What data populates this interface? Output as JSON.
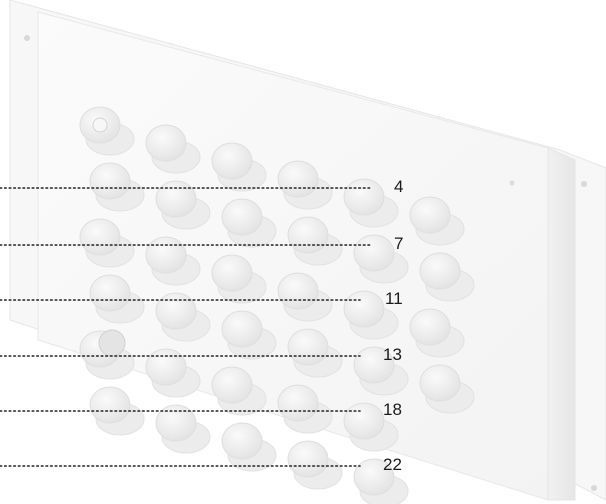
{
  "callouts": [
    {
      "label": "4"
    },
    {
      "label": "7"
    },
    {
      "label": "11"
    },
    {
      "label": "13"
    },
    {
      "label": "18"
    },
    {
      "label": "22"
    }
  ]
}
